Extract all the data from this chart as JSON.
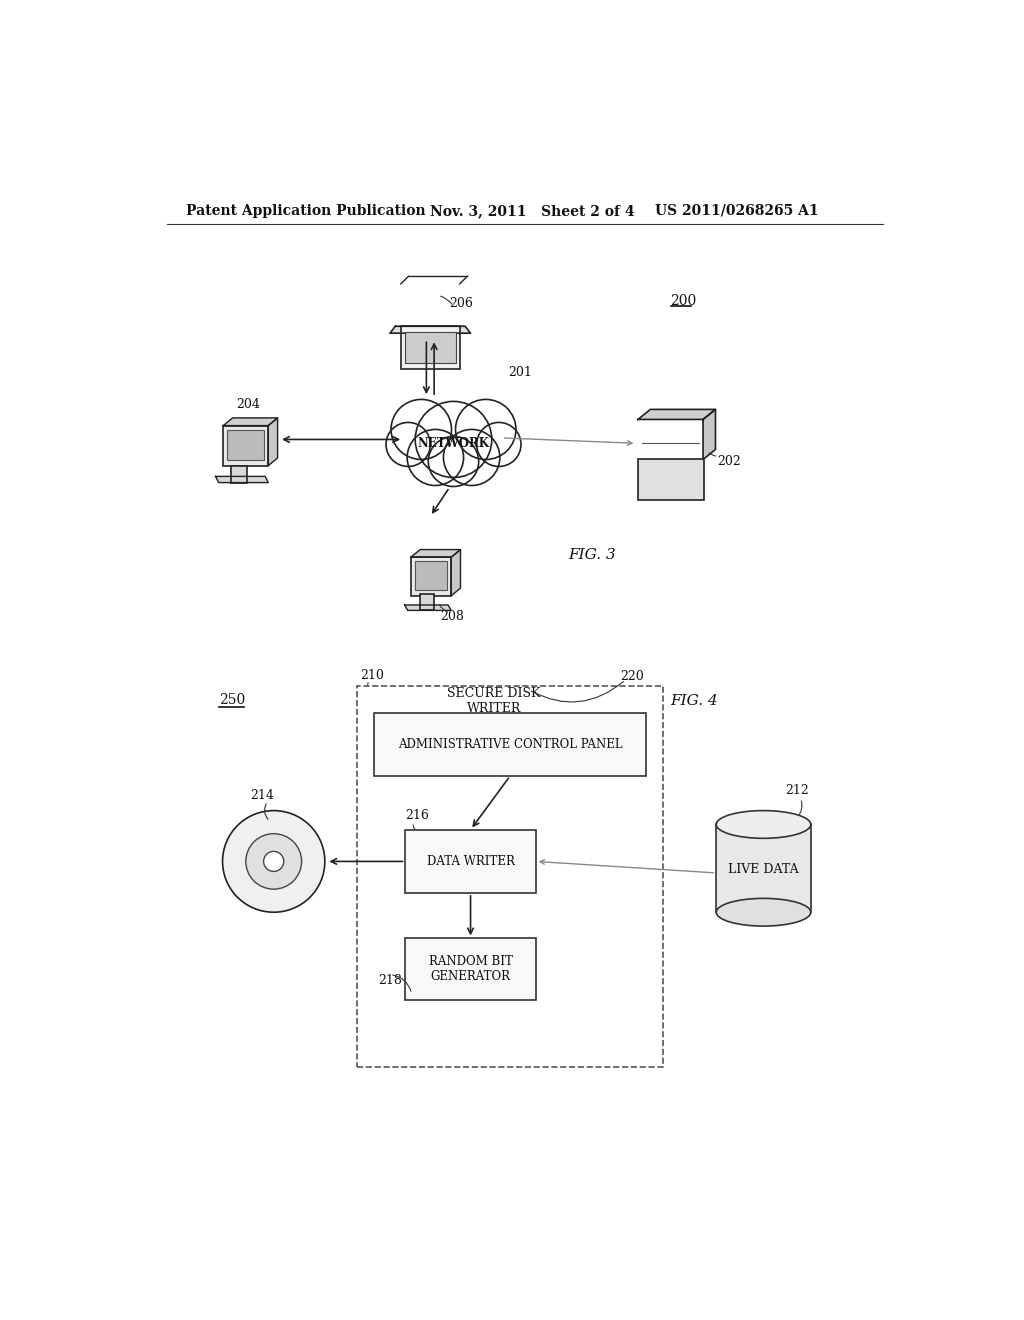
{
  "background_color": "#ffffff",
  "header_left": "Patent Application Publication",
  "header_mid": "Nov. 3, 2011   Sheet 2 of 4",
  "header_right": "US 2011/0268265 A1",
  "fig3_label": "FIG. 3",
  "fig4_label": "FIG. 4",
  "network_label": "NETWORK",
  "label_200": "200",
  "label_201": "201",
  "label_202": "202",
  "label_204": "204",
  "label_206": "206",
  "label_208": "208",
  "label_210": "210",
  "label_212": "212",
  "label_214": "214",
  "label_216": "216",
  "label_218": "218",
  "label_220": "220",
  "label_250": "250",
  "secure_disk_writer": "SECURE DISK\nWRITER",
  "admin_control": "ADMINISTRATIVE CONTROL PANEL",
  "data_writer": "DATA WRITER",
  "random_bit": "RANDOM BIT\nGENERATOR",
  "live_data": "LIVE DATA"
}
